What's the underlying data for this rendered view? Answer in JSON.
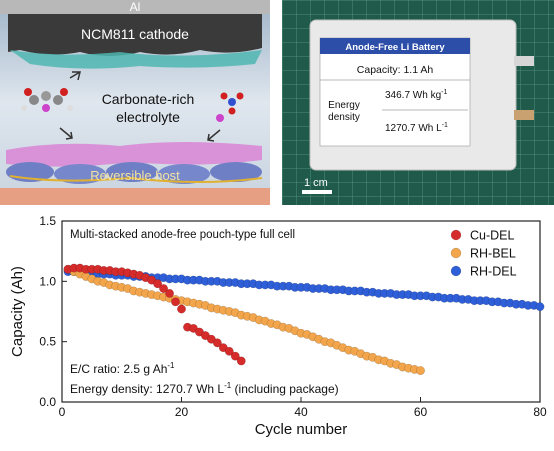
{
  "schematic": {
    "al_label": "Al",
    "cathode_label": "NCM811 cathode",
    "electrolyte_line1": "Carbonate-rich",
    "electrolyte_line2": "electrolyte",
    "host_label": "Reversible host"
  },
  "photo": {
    "battery_title": "Anode-Free Li Battery",
    "capacity_text": "Capacity:  1.1 Ah",
    "energy_label_1": "Energy",
    "energy_label_2": "density",
    "energy_grav_value": "346.7 Wh kg",
    "energy_grav_exp": "-1",
    "energy_vol_value": "1270.7 Wh L",
    "energy_vol_exp": "-1",
    "scale_label": "1 cm"
  },
  "chart_data": {
    "type": "scatter",
    "title": "Multi-stacked anode-free pouch-type full cell",
    "xlabel": "Cycle number",
    "ylabel": "Capacity (Ah)",
    "xlim": [
      0,
      80
    ],
    "ylim": [
      0.0,
      1.5
    ],
    "xticks": [
      0,
      20,
      40,
      60,
      80
    ],
    "yticks": [
      0.0,
      0.5,
      1.0,
      1.5
    ],
    "ytick_labels": [
      "0.0",
      "0.5",
      "1.0",
      "1.5"
    ],
    "legend_position": "top-right",
    "grid": false,
    "annotation_1": "E/C ratio: 2.5 g Ah",
    "annotation_1_exp": "-1",
    "annotation_2_a": "Energy density: 1270.7 Wh L",
    "annotation_2_exp": "-1",
    "annotation_2_b": " (including package)",
    "series": [
      {
        "name": "Cu-DEL",
        "color": "#d52b2b",
        "x": [
          1,
          2,
          3,
          4,
          5,
          6,
          7,
          8,
          9,
          10,
          11,
          12,
          13,
          14,
          15,
          16,
          17,
          18,
          19,
          20,
          21,
          22,
          23,
          24,
          25,
          26,
          27,
          28,
          29,
          30
        ],
        "y": [
          1.1,
          1.11,
          1.11,
          1.1,
          1.1,
          1.1,
          1.09,
          1.09,
          1.08,
          1.08,
          1.07,
          1.06,
          1.05,
          1.03,
          1.01,
          0.98,
          0.94,
          0.9,
          0.83,
          0.77,
          0.62,
          0.61,
          0.58,
          0.55,
          0.52,
          0.49,
          0.45,
          0.42,
          0.38,
          0.34
        ]
      },
      {
        "name": "RH-BEL",
        "color": "#f2a54a",
        "x": [
          1,
          2,
          3,
          4,
          5,
          6,
          7,
          8,
          9,
          10,
          11,
          12,
          13,
          14,
          15,
          16,
          17,
          18,
          19,
          20,
          21,
          22,
          23,
          24,
          25,
          26,
          27,
          28,
          29,
          30,
          31,
          32,
          33,
          34,
          35,
          36,
          37,
          38,
          39,
          40,
          41,
          42,
          43,
          44,
          45,
          46,
          47,
          48,
          49,
          50,
          51,
          52,
          53,
          54,
          55,
          56,
          57,
          58,
          59,
          60
        ],
        "y": [
          1.1,
          1.08,
          1.06,
          1.04,
          1.02,
          1.0,
          0.99,
          0.97,
          0.96,
          0.95,
          0.94,
          0.92,
          0.91,
          0.9,
          0.89,
          0.88,
          0.87,
          0.86,
          0.85,
          0.84,
          0.83,
          0.82,
          0.81,
          0.8,
          0.78,
          0.77,
          0.76,
          0.75,
          0.74,
          0.72,
          0.71,
          0.7,
          0.68,
          0.67,
          0.65,
          0.64,
          0.62,
          0.61,
          0.59,
          0.57,
          0.56,
          0.54,
          0.52,
          0.5,
          0.49,
          0.47,
          0.45,
          0.43,
          0.42,
          0.4,
          0.38,
          0.37,
          0.35,
          0.34,
          0.32,
          0.31,
          0.29,
          0.28,
          0.27,
          0.26
        ]
      },
      {
        "name": "RH-DEL",
        "color": "#2f5fd8",
        "x": [
          1,
          2,
          3,
          4,
          5,
          6,
          7,
          8,
          9,
          10,
          11,
          12,
          13,
          14,
          15,
          16,
          17,
          18,
          19,
          20,
          21,
          22,
          23,
          24,
          25,
          26,
          27,
          28,
          29,
          30,
          31,
          32,
          33,
          34,
          35,
          36,
          37,
          38,
          39,
          40,
          41,
          42,
          43,
          44,
          45,
          46,
          47,
          48,
          49,
          50,
          51,
          52,
          53,
          54,
          55,
          56,
          57,
          58,
          59,
          60,
          61,
          62,
          63,
          64,
          65,
          66,
          67,
          68,
          69,
          70,
          71,
          72,
          73,
          74,
          75,
          76,
          77,
          78,
          79,
          80
        ],
        "y": [
          1.08,
          1.08,
          1.07,
          1.07,
          1.07,
          1.06,
          1.06,
          1.06,
          1.05,
          1.05,
          1.05,
          1.04,
          1.04,
          1.04,
          1.03,
          1.03,
          1.03,
          1.02,
          1.02,
          1.02,
          1.01,
          1.01,
          1.01,
          1.0,
          1.0,
          1.0,
          0.99,
          0.99,
          0.99,
          0.98,
          0.98,
          0.98,
          0.97,
          0.97,
          0.97,
          0.96,
          0.96,
          0.96,
          0.95,
          0.95,
          0.95,
          0.94,
          0.94,
          0.94,
          0.93,
          0.93,
          0.93,
          0.92,
          0.92,
          0.92,
          0.91,
          0.91,
          0.9,
          0.9,
          0.9,
          0.89,
          0.89,
          0.89,
          0.88,
          0.88,
          0.88,
          0.87,
          0.87,
          0.86,
          0.86,
          0.86,
          0.85,
          0.85,
          0.84,
          0.84,
          0.84,
          0.83,
          0.83,
          0.82,
          0.82,
          0.81,
          0.81,
          0.8,
          0.8,
          0.79
        ]
      }
    ]
  }
}
